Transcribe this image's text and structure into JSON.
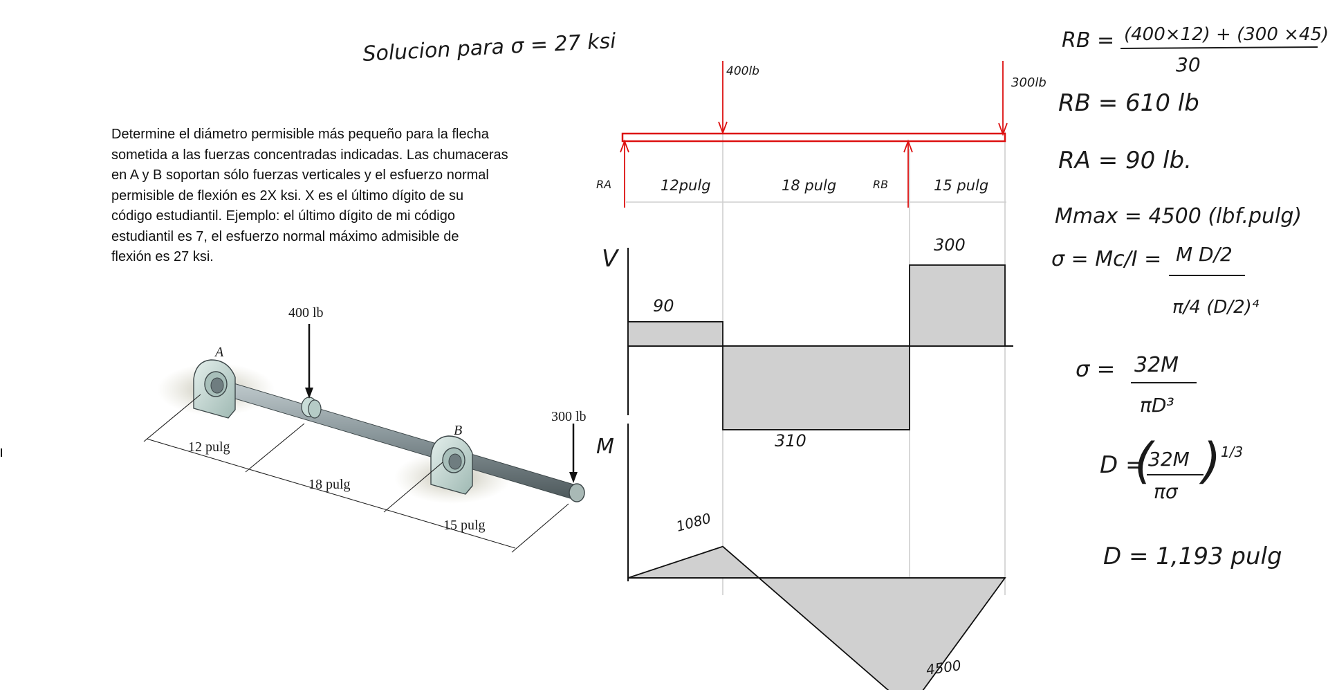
{
  "heading": "Solucion para σ = 27 ksi",
  "problem": {
    "lines": [
      "Determine el diámetro permisible más pequeño para la flecha",
      "sometida a las fuerzas concentradas indicadas. Las chumaceras",
      "en A y B soportan sólo fuerzas verticales y el esfuerzo  normal",
      "permisible de flexión es   2X ksi. X es el último dígito de su",
      "código estudiantil. Ejemplo: el último dígito de mi código",
      "estudiantil es 7, el esfuerzo normal máximo admisible de",
      "flexión es 27 ksi."
    ]
  },
  "figure": {
    "load1": "400 lb",
    "load2": "300 lb",
    "support_a": "A",
    "support_b": "B",
    "dim1": "12 pulg",
    "dim2": "18 pulg",
    "dim3": "15 pulg"
  },
  "beam": {
    "load1": "400lb",
    "load2": "300lb",
    "reaction_a": "RA",
    "reaction_b": "RB",
    "span1": "12pulg",
    "span2": "18 pulg",
    "span3": "15 pulg"
  },
  "shear": {
    "axis": "V",
    "values": [
      90,
      -310,
      300
    ],
    "labels": [
      "90",
      "310",
      "300"
    ]
  },
  "moment": {
    "axis": "M",
    "values": [
      0,
      1080,
      -4500,
      0
    ],
    "labels": [
      "1080",
      "4500"
    ]
  },
  "solution": {
    "rb_eq_left": "RB =",
    "rb_eq_num": "(400×12) + (300 ×45)",
    "rb_eq_den": "30",
    "rb": "RB = 610 lb",
    "ra": "RA = 90 lb.",
    "mmax": "Mmax = 4500 (lbf.pulg)",
    "sigma_eq_left": "σ = Mc/I =",
    "sigma_eq_num": "M D/2",
    "sigma_eq_den": "π/4 (D/2)⁴",
    "sigma2_left": "σ =",
    "sigma2_num": "32M",
    "sigma2_den": "πD³",
    "d_formula_left": "D =",
    "d_formula_num": "32M",
    "d_formula_den": "πσ",
    "d_formula_exp": "1/3",
    "d_result": "D = 1,193 pulg"
  },
  "colors": {
    "ink": "#1a1a1a",
    "red": "#dd1111",
    "fill_gray": "#d0d0d0",
    "grid_gray": "#cfcfcf",
    "shaft": "#7d8a8e",
    "bearing": "#c9ddd8"
  }
}
